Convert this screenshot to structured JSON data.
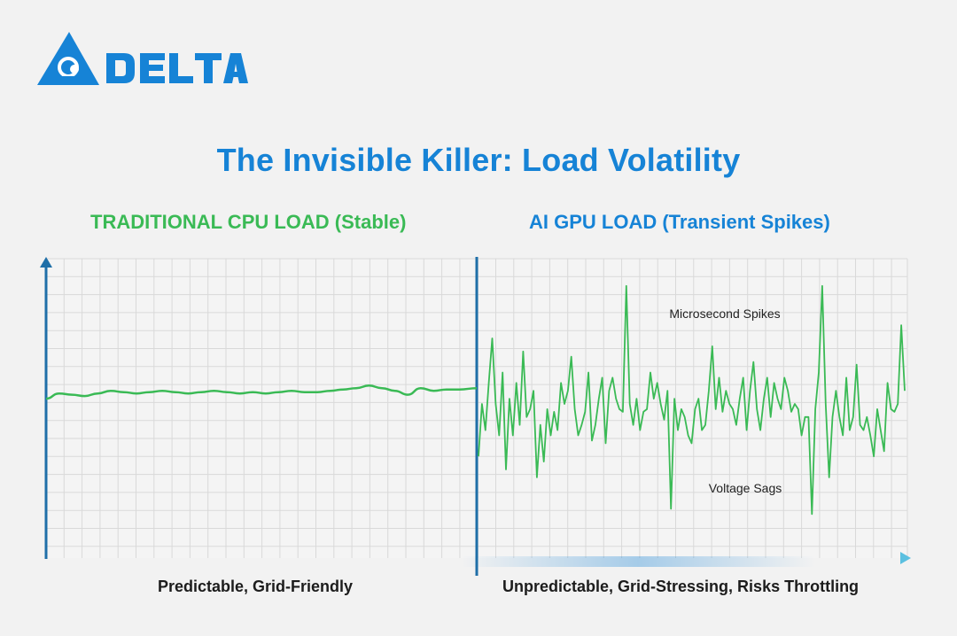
{
  "brand": {
    "name": "DELTA",
    "logo_color": "#1683d6"
  },
  "title": "The Invisible Killer: Load Volatility",
  "chart_data": [
    {
      "type": "line",
      "title": "TRADITIONAL CPU LOAD (Stable)",
      "caption": "Predictable, Grid-Friendly",
      "color": "#3aba55",
      "ylim": [
        0,
        100
      ],
      "grid": true,
      "x": [
        0,
        3,
        6,
        9,
        12,
        15,
        18,
        21,
        24,
        27,
        30,
        33,
        36,
        39,
        42,
        45,
        48,
        51,
        54,
        57,
        60,
        63,
        66,
        69,
        72,
        75,
        78,
        81,
        84,
        87,
        90,
        93,
        96,
        100
      ],
      "values": [
        52,
        54,
        53.5,
        53,
        54,
        55,
        54.5,
        54,
        54.5,
        55,
        54.5,
        54,
        54.5,
        55,
        54.5,
        54,
        54.5,
        54,
        54.5,
        55,
        54.5,
        54.5,
        55,
        55.5,
        56,
        57,
        56,
        55,
        53.5,
        56,
        55,
        55.5,
        55.5,
        56
      ]
    },
    {
      "type": "line",
      "title": "AI GPU LOAD (Transient Spikes)",
      "caption": "Unpredictable, Grid-Stressing, Risks Throttling",
      "color": "#3aba55",
      "ylim": [
        0,
        100
      ],
      "grid": true,
      "values": [
        30,
        50,
        40,
        58,
        75,
        50,
        38,
        62,
        25,
        52,
        38,
        58,
        42,
        70,
        45,
        48,
        55,
        22,
        42,
        28,
        48,
        38,
        47,
        40,
        58,
        50,
        55,
        68,
        48,
        38,
        42,
        47,
        62,
        36,
        42,
        52,
        60,
        35,
        55,
        60,
        52,
        48,
        47,
        95,
        50,
        42,
        52,
        40,
        47,
        48,
        62,
        52,
        58,
        50,
        44,
        55,
        10,
        52,
        40,
        48,
        45,
        38,
        35,
        48,
        52,
        40,
        42,
        55,
        72,
        48,
        60,
        47,
        55,
        50,
        48,
        42,
        52,
        60,
        40,
        55,
        66,
        48,
        40,
        52,
        60,
        45,
        58,
        52,
        48,
        60,
        55,
        47,
        50,
        48,
        38,
        45,
        45,
        8,
        48,
        62,
        95,
        50,
        22,
        45,
        55,
        45,
        38,
        60,
        40,
        45,
        65,
        42,
        40,
        45,
        38,
        30,
        48,
        40,
        32,
        58,
        48,
        47,
        50,
        80,
        55
      ]
    }
  ],
  "annotations": {
    "spikes": "Microsecond Spikes",
    "sags": "Voltage Sags"
  }
}
